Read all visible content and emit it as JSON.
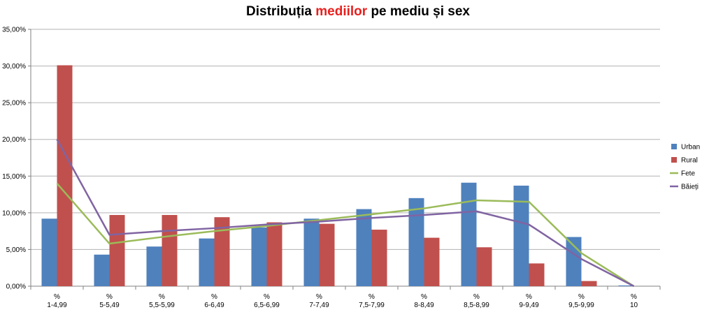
{
  "title": {
    "part1": "Distribuția ",
    "highlight": "mediilor",
    "part2": " pe mediu și sex"
  },
  "chart_data": {
    "type": "bar",
    "categories": [
      [
        "%",
        "1-4,99"
      ],
      [
        "%",
        "5-5,49"
      ],
      [
        "%",
        "5,5-5,99"
      ],
      [
        "%",
        "6-6,49"
      ],
      [
        "%",
        "6,5-6,99"
      ],
      [
        "%",
        "7-7,49"
      ],
      [
        "%",
        "7,5-7,99"
      ],
      [
        "%",
        "8-8,49"
      ],
      [
        "%",
        "8,5-8,99"
      ],
      [
        "%",
        "9-9,49"
      ],
      [
        "%",
        "9,5-9,99"
      ],
      [
        "%",
        "10"
      ]
    ],
    "ylim": [
      0,
      35
    ],
    "yticks": [
      "0,00%",
      "5,00%",
      "10,00%",
      "15,00%",
      "20,00%",
      "25,00%",
      "30,00%",
      "35,00%"
    ],
    "grid": true,
    "legend_position": "right",
    "series": [
      {
        "name": "Urban",
        "kind": "bar",
        "color": "#4f81bd",
        "values": [
          9.2,
          4.3,
          5.4,
          6.5,
          8.0,
          9.2,
          10.5,
          12.0,
          14.1,
          13.7,
          6.7,
          0.1
        ]
      },
      {
        "name": "Rural",
        "kind": "bar",
        "color": "#c0504d",
        "values": [
          30.1,
          9.7,
          9.7,
          9.4,
          8.7,
          8.5,
          7.7,
          6.6,
          5.3,
          3.1,
          0.7,
          0.0
        ]
      },
      {
        "name": "Fete",
        "kind": "line",
        "color": "#9bbb59",
        "values": [
          14.0,
          5.8,
          6.7,
          7.5,
          8.2,
          9.0,
          9.8,
          10.6,
          11.7,
          11.5,
          4.5,
          0.0
        ]
      },
      {
        "name": "Băieți",
        "kind": "line",
        "color": "#8064a2",
        "values": [
          20.0,
          7.0,
          7.5,
          7.9,
          8.4,
          8.8,
          9.3,
          9.7,
          10.2,
          8.4,
          3.7,
          0.0
        ]
      }
    ]
  }
}
